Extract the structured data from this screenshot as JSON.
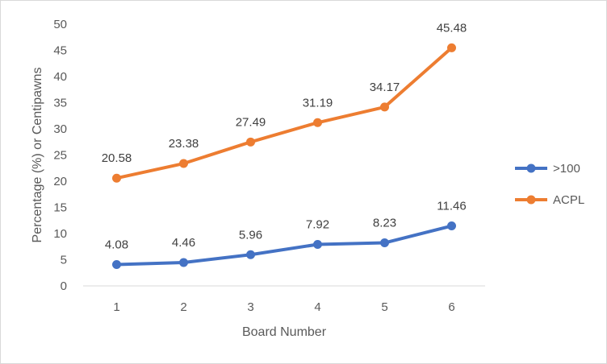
{
  "chart_data": {
    "type": "line",
    "title": "",
    "xlabel": "Board Number",
    "ylabel": "Percentage (%) or Centipawns",
    "categories": [
      "1",
      "2",
      "3",
      "4",
      "5",
      "6"
    ],
    "ylim": [
      0,
      50
    ],
    "yticks": [
      "0",
      "5",
      "10",
      "15",
      "20",
      "25",
      "30",
      "35",
      "40",
      "45",
      "50"
    ],
    "grid": false,
    "legend": "right",
    "series": [
      {
        "name": ">100",
        "color": "#4472C4",
        "values": [
          4.08,
          4.46,
          5.96,
          7.92,
          8.23,
          11.46
        ],
        "labels": [
          "4.08",
          "4.46",
          "5.96",
          "7.92",
          "8.23",
          "11.46"
        ]
      },
      {
        "name": "ACPL",
        "color": "#ED7D31",
        "values": [
          20.58,
          23.38,
          27.49,
          31.19,
          34.17,
          45.48
        ],
        "labels": [
          "20.58",
          "23.38",
          "27.49",
          "31.19",
          "34.17",
          "45.48"
        ]
      }
    ]
  }
}
